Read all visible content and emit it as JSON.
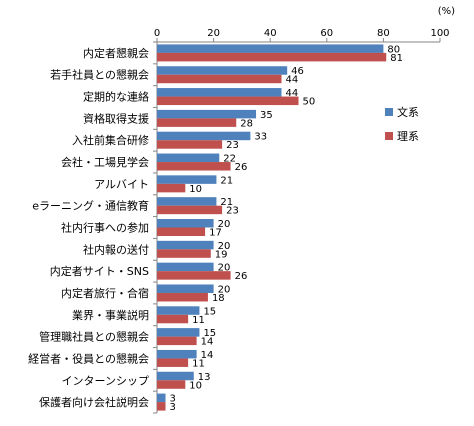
{
  "chart_data": {
    "type": "bar",
    "orientation": "horizontal",
    "unit_label": "(%)",
    "xlim": [
      0,
      100
    ],
    "x_ticks": [
      "0",
      "20",
      "40",
      "60",
      "80",
      "100"
    ],
    "grid": false,
    "legend_position": "right",
    "categories": [
      "内定者懇親会",
      "若手社員との懇親会",
      "定期的な連絡",
      "資格取得支援",
      "入社前集合研修",
      "会社・工場見学会",
      "アルバイト",
      "eラーニング・通信教育",
      "社内行事への参加",
      "社内報の送付",
      "内定者サイト・SNS",
      "内定者旅行・合宿",
      "業界・事業説明",
      "管理職社員との懇親会",
      "経営者・役員との懇親会",
      "インターンシップ",
      "保護者向け会社説明会"
    ],
    "series": [
      {
        "name": "文系",
        "color": "#4f81bd",
        "values": [
          80,
          46,
          44,
          35,
          33,
          22,
          21,
          21,
          20,
          20,
          20,
          20,
          15,
          15,
          14,
          13,
          3
        ]
      },
      {
        "name": "理系",
        "color": "#c0504d",
        "values": [
          81,
          44,
          50,
          28,
          23,
          26,
          10,
          23,
          17,
          19,
          26,
          18,
          11,
          14,
          11,
          10,
          3
        ]
      }
    ]
  }
}
